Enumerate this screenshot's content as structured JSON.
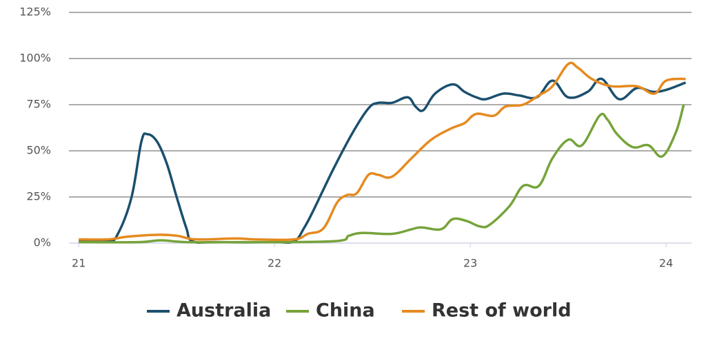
{
  "chart_data": {
    "type": "line",
    "ylim": [
      0,
      125
    ],
    "yticks": [
      {
        "value": 0,
        "label": "0%"
      },
      {
        "value": 25,
        "label": "25%"
      },
      {
        "value": 50,
        "label": "50%"
      },
      {
        "value": 75,
        "label": "75%"
      },
      {
        "value": 100,
        "label": "100%"
      },
      {
        "value": 125,
        "label": "125%"
      }
    ],
    "xlim": [
      20.95,
      24.13
    ],
    "xticks": [
      21,
      22,
      23,
      24
    ],
    "grid": true,
    "legend": "bottom",
    "series": [
      {
        "name": "Australia",
        "color": "#1b4f6e",
        "x": [
          21.0,
          21.15,
          21.2,
          21.27,
          21.32,
          21.35,
          21.4,
          21.45,
          21.5,
          21.55,
          21.58,
          21.7,
          22.0,
          22.1,
          22.15,
          22.2,
          22.3,
          22.4,
          22.48,
          22.53,
          22.6,
          22.68,
          22.72,
          22.76,
          22.82,
          22.91,
          22.97,
          23.03,
          23.08,
          23.17,
          23.25,
          23.34,
          23.42,
          23.5,
          23.6,
          23.67,
          23.76,
          23.85,
          23.93,
          24.0,
          24.1
        ],
        "values": [
          1,
          1,
          5,
          25,
          55,
          59,
          55,
          43,
          25,
          8,
          1,
          0.5,
          0.5,
          1,
          8,
          18,
          40,
          60,
          73,
          76,
          76,
          79,
          74,
          72,
          81,
          86,
          82,
          79,
          78,
          81,
          80,
          79,
          88,
          79,
          82,
          89,
          78,
          84,
          82,
          83,
          87
        ]
      },
      {
        "name": "China",
        "color": "#76a33a",
        "x": [
          21.0,
          21.3,
          21.42,
          21.55,
          21.8,
          22.3,
          22.38,
          22.45,
          22.6,
          22.7,
          22.75,
          22.85,
          22.91,
          22.98,
          23.05,
          23.1,
          23.2,
          23.27,
          23.35,
          23.42,
          23.5,
          23.57,
          23.66,
          23.7,
          23.75,
          23.83,
          23.91,
          23.98,
          24.05,
          24.09
        ],
        "values": [
          0.5,
          0.5,
          1.5,
          0.5,
          0.5,
          1,
          4,
          5.5,
          5,
          7.5,
          8.5,
          7.5,
          13,
          12,
          9,
          10,
          20,
          31,
          31,
          46,
          56,
          53,
          69,
          67,
          59,
          52,
          53,
          47,
          60,
          75
        ]
      },
      {
        "name": "Rest of world",
        "color": "#e58a1f",
        "x": [
          21.0,
          21.15,
          21.25,
          21.4,
          21.5,
          21.6,
          21.8,
          21.9,
          22.1,
          22.17,
          22.25,
          22.32,
          22.37,
          22.42,
          22.48,
          22.53,
          22.6,
          22.7,
          22.8,
          22.9,
          22.97,
          23.03,
          23.12,
          23.18,
          23.27,
          23.35,
          23.42,
          23.5,
          23.55,
          23.62,
          23.72,
          23.85,
          23.94,
          24.0,
          24.1
        ],
        "values": [
          2,
          2,
          3.5,
          4.5,
          4,
          2,
          2.5,
          2,
          2,
          5,
          8,
          22,
          26,
          27,
          37,
          37,
          36,
          46,
          56,
          62,
          65,
          70,
          69,
          74,
          75,
          80,
          85,
          97,
          95,
          89,
          85,
          85,
          81,
          88,
          89
        ]
      }
    ]
  }
}
